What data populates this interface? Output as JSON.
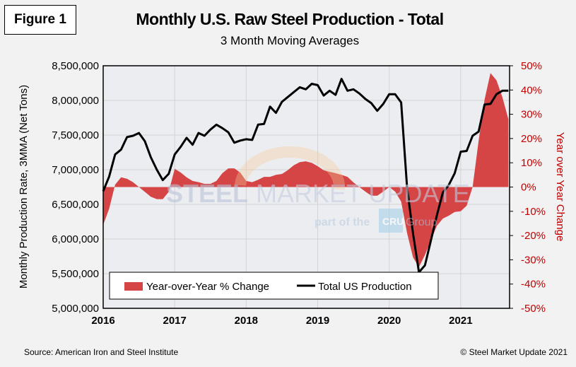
{
  "figure_label": "Figure 1",
  "footer": {
    "source": "Source: American Iron and Steel Institute",
    "copyright": "© Steel Market Update 2021"
  },
  "watermark": {
    "line1a": "STEEL",
    "line1b": "MARKET UPDATE",
    "line2a": "part of the",
    "logo": "CRU",
    "line2b": "Group"
  },
  "colors": {
    "area": "#d64545",
    "line": "#000000",
    "right_axis": "#c00000",
    "plot_bg": "#ecedf0",
    "grid": "#d3d3d6"
  },
  "chart_data": {
    "type": "line+area",
    "title": "Monthly U.S. Raw Steel Production - Total",
    "subtitle": "3 Month Moving Averages",
    "ylabel": "Monthly Production Rate, 3MMA (Net Tons)",
    "y2label": "Year over Year Change",
    "ylim": [
      5000000,
      8500000
    ],
    "y2lim": [
      -50,
      50
    ],
    "yticks": [
      "5,000,000",
      "5,500,000",
      "6,000,000",
      "6,500,000",
      "7,000,000",
      "7,500,000",
      "8,000,000",
      "8,500,000"
    ],
    "y2ticks": [
      "-50%",
      "-40%",
      "-30%",
      "-20%",
      "-10%",
      "0%",
      "10%",
      "20%",
      "30%",
      "40%",
      "50%"
    ],
    "xticks": [
      "2016",
      "2017",
      "2018",
      "2019",
      "2020",
      "2021"
    ],
    "x_start": "2016-01",
    "x_end": "2021-09",
    "frequency": "monthly",
    "grid": true,
    "legend_placement": "bottom-center",
    "series": [
      {
        "name": "Year-over-Year % Change",
        "axis": "right",
        "kind": "area",
        "values": [
          -15.6,
          -9,
          1,
          4,
          3.4,
          2,
          0,
          -2,
          -4,
          -5,
          -5,
          -2,
          7.5,
          6,
          4,
          2.5,
          2,
          1.3,
          1.3,
          2.5,
          5.7,
          7.7,
          7.7,
          6,
          2.5,
          2,
          3,
          4.2,
          4.2,
          5,
          5.4,
          7,
          9,
          10.3,
          10.6,
          10,
          8.6,
          6.9,
          6.3,
          5.7,
          5,
          4.2,
          1.9,
          0,
          -1.9,
          -3.6,
          -3.6,
          -1.9,
          0,
          -1.9,
          -6,
          -19,
          -29,
          -33,
          -28,
          -22,
          -16,
          -13,
          -11.8,
          -10.3,
          -10,
          -7.7,
          0,
          19,
          36,
          47,
          44,
          37,
          28
        ]
      },
      {
        "name": "Total US Production",
        "axis": "left",
        "kind": "line",
        "values": [
          6690000,
          6900000,
          7220000,
          7290000,
          7470000,
          7490000,
          7530000,
          7410000,
          7180000,
          7000000,
          6850000,
          6940000,
          7220000,
          7330000,
          7460000,
          7360000,
          7530000,
          7490000,
          7580000,
          7650000,
          7600000,
          7540000,
          7390000,
          7420000,
          7440000,
          7430000,
          7650000,
          7660000,
          7910000,
          7820000,
          7980000,
          8050000,
          8120000,
          8190000,
          8160000,
          8240000,
          8220000,
          8070000,
          8140000,
          8080000,
          8310000,
          8140000,
          8160000,
          8100000,
          8020000,
          7960000,
          7850000,
          7950000,
          8090000,
          8090000,
          7970000,
          6740000,
          6080000,
          5520000,
          5620000,
          5980000,
          6340000,
          6670000,
          6780000,
          6950000,
          7260000,
          7270000,
          7490000,
          7550000,
          7940000,
          7950000,
          8090000,
          8140000,
          8140000
        ]
      }
    ]
  }
}
